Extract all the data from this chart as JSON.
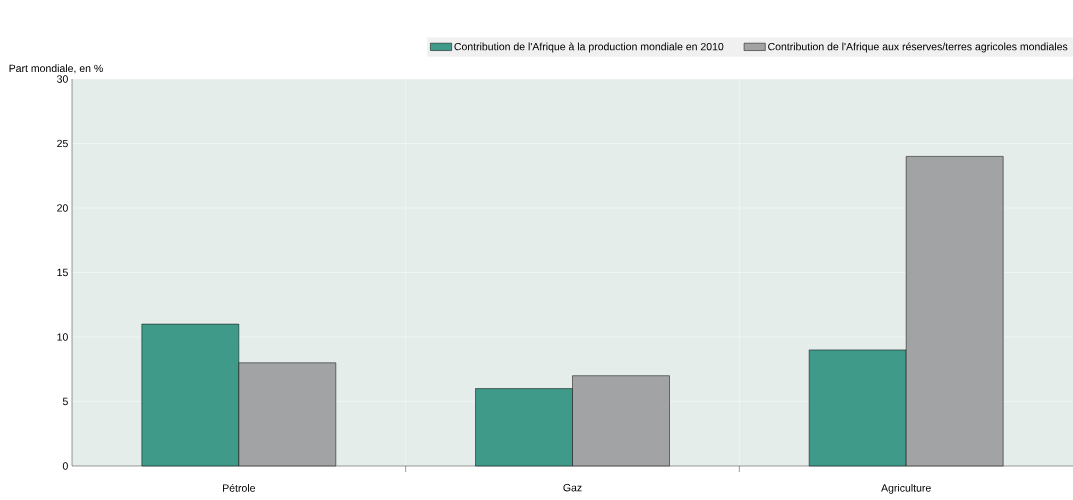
{
  "chart_data": {
    "type": "bar",
    "ylabel": "Part mondiale, en %",
    "categories": [
      "Pétrole",
      "Gaz",
      "Agriculture"
    ],
    "series": [
      {
        "name": "Contribution de l'Afrique à la production mondiale en 2010",
        "color": "#3f9a8a",
        "values": [
          11,
          6,
          9
        ]
      },
      {
        "name": "Contribution de l'Afrique aux réserves/terres agricoles mondiales",
        "color": "#a2a3a5",
        "values": [
          8,
          7,
          24
        ]
      }
    ],
    "ylim": [
      0,
      30
    ],
    "yticks": [
      0,
      5,
      10,
      15,
      20,
      25,
      30
    ],
    "grid": true,
    "legend": "top"
  }
}
